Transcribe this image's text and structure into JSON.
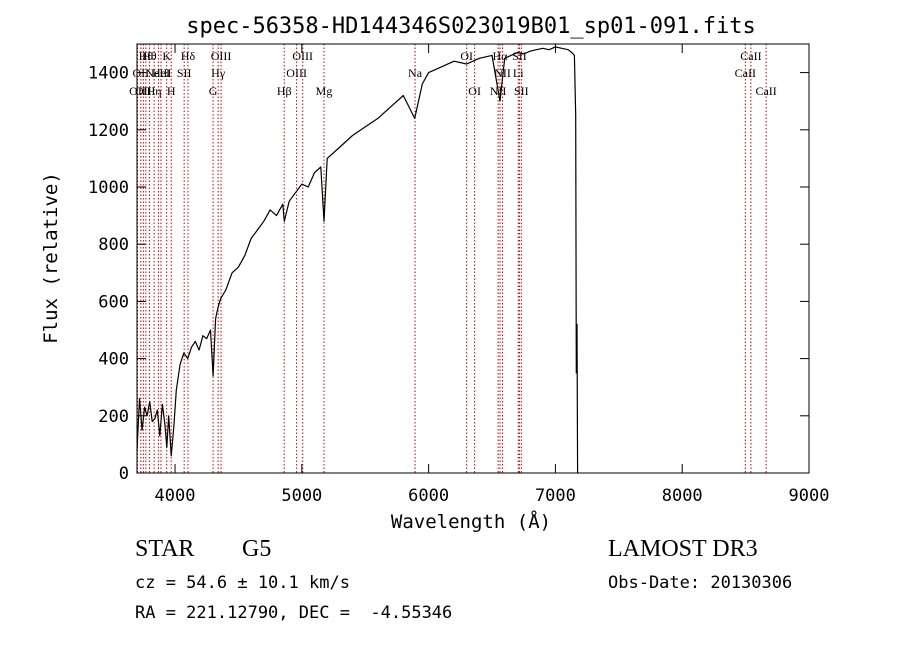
{
  "chart_data": {
    "type": "line",
    "title": "spec-56358-HD144346S023019B01_sp01-091.fits",
    "xlabel": "Wavelength (Å)",
    "ylabel": "Flux (relative)",
    "xlim": [
      3700,
      9000
    ],
    "ylim": [
      0,
      1500
    ],
    "xticks": [
      4000,
      5000,
      6000,
      7000,
      8000,
      9000
    ],
    "yticks": [
      0,
      200,
      400,
      600,
      800,
      1000,
      1200,
      1400
    ],
    "grid": false,
    "series": [
      {
        "x": [
          3700,
          3720,
          3740,
          3760,
          3780,
          3800,
          3820,
          3840,
          3860,
          3880,
          3900,
          3920,
          3935,
          3950,
          3970,
          3990,
          4010,
          4040,
          4070,
          4100,
          4130,
          4160,
          4190,
          4220,
          4250,
          4280,
          4300,
          4320,
          4340,
          4360,
          4400,
          4450,
          4500,
          4550,
          4600,
          4650,
          4700,
          4750,
          4800,
          4850,
          4862,
          4900,
          4950,
          5000,
          5050,
          5100,
          5150,
          5175,
          5200,
          5300,
          5400,
          5500,
          5600,
          5700,
          5800,
          5890,
          5950,
          6000,
          6100,
          6200,
          6300,
          6400,
          6500,
          6563,
          6600,
          6650,
          6700,
          6750,
          6800,
          6850,
          6900,
          6950,
          7000,
          7050,
          7100,
          7130,
          7150,
          7160,
          7165,
          7170,
          7175,
          7180
        ],
        "values": [
          80,
          260,
          150,
          230,
          200,
          250,
          180,
          190,
          220,
          130,
          240,
          170,
          90,
          200,
          60,
          160,
          290,
          380,
          420,
          400,
          440,
          460,
          430,
          480,
          470,
          500,
          340,
          540,
          580,
          610,
          640,
          700,
          720,
          760,
          820,
          850,
          880,
          920,
          900,
          940,
          880,
          950,
          980,
          1010,
          1000,
          1050,
          1070,
          880,
          1100,
          1140,
          1180,
          1210,
          1240,
          1280,
          1320,
          1240,
          1360,
          1400,
          1420,
          1440,
          1430,
          1450,
          1460,
          1300,
          1450,
          1460,
          1470,
          1465,
          1475,
          1480,
          1485,
          1480,
          1490,
          1485,
          1480,
          1470,
          1460,
          1250,
          350,
          520,
          0,
          0
        ]
      }
    ],
    "lines": [
      {
        "x": 3704,
        "row": 3,
        "label": "OII"
      },
      {
        "x": 3730,
        "row": 2,
        "label": "OII"
      },
      {
        "x": 3750,
        "row": 3,
        "label": "OII"
      },
      {
        "x": 3770,
        "row": 1,
        "label": "Hθ"
      },
      {
        "x": 3798,
        "row": 1,
        "label": "Hθ"
      },
      {
        "x": 3835,
        "row": 3,
        "label": "Hη"
      },
      {
        "x": 3869,
        "row": 2,
        "label": "NeIII"
      },
      {
        "x": 3889,
        "row": 2,
        "label": "HeI"
      },
      {
        "x": 3934,
        "row": 1,
        "label": "K"
      },
      {
        "x": 3970,
        "row": 3,
        "label": "H"
      },
      {
        "x": 4072,
        "row": 2,
        "label": "SII"
      },
      {
        "x": 4102,
        "row": 1,
        "label": "Hδ"
      },
      {
        "x": 4300,
        "row": 3,
        "label": "G"
      },
      {
        "x": 4340,
        "row": 2,
        "label": "Hγ"
      },
      {
        "x": 4363,
        "row": 1,
        "label": "OIII"
      },
      {
        "x": 4861,
        "row": 3,
        "label": "Hβ"
      },
      {
        "x": 4959,
        "row": 2,
        "label": "OIII"
      },
      {
        "x": 5007,
        "row": 1,
        "label": "OIII"
      },
      {
        "x": 5175,
        "row": 3,
        "label": "Mg"
      },
      {
        "x": 5893,
        "row": 2,
        "label": "Na"
      },
      {
        "x": 6300,
        "row": 1,
        "label": "OI"
      },
      {
        "x": 6363,
        "row": 3,
        "label": "OI"
      },
      {
        "x": 6548,
        "row": 3,
        "label": "NII"
      },
      {
        "x": 6563,
        "row": 1,
        "label": "Hα"
      },
      {
        "x": 6583,
        "row": 2,
        "label": "NII"
      },
      {
        "x": 6707,
        "row": 2,
        "label": "Li"
      },
      {
        "x": 6716,
        "row": 1,
        "label": "SII"
      },
      {
        "x": 6731,
        "row": 3,
        "label": "SII"
      },
      {
        "x": 8498,
        "row": 2,
        "label": "CaII"
      },
      {
        "x": 8542,
        "row": 1,
        "label": "CaII"
      },
      {
        "x": 8662,
        "row": 3,
        "label": "CaII"
      }
    ]
  },
  "info": {
    "object_class": "STAR",
    "subclass": "G5",
    "survey": "LAMOST DR3",
    "cz": "cz = 54.6 ± 10.1 km/s",
    "obs_date": "Obs-Date: 20130306",
    "coords": "RA = 221.12790, DEC =  -4.55346"
  },
  "colors": {
    "spectrum": "#000000",
    "line_markers": "#cc0000",
    "axes": "#000000"
  }
}
